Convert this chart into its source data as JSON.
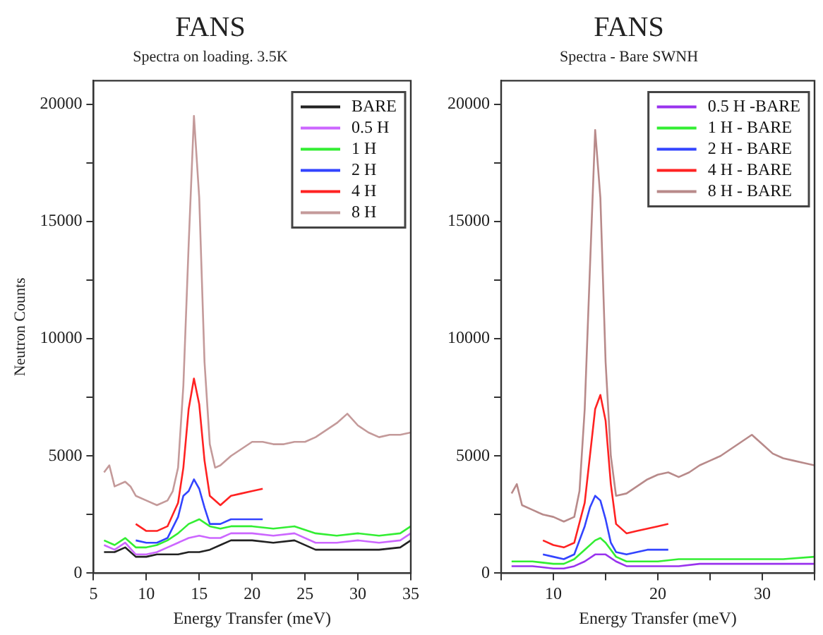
{
  "chart_data": [
    {
      "type": "line",
      "title": "FANS",
      "subtitle": "Spectra on loading. 3.5K",
      "xlabel": "Energy Transfer (meV)",
      "ylabel": "Neutron Counts",
      "xlim": [
        5,
        35
      ],
      "ylim": [
        0,
        21000
      ],
      "xticks": [
        5,
        10,
        15,
        20,
        25,
        30,
        35
      ],
      "yticks": [
        0,
        {
          "value": 2500,
          "label": null
        },
        5000,
        {
          "value": 7500,
          "label": null
        },
        10000,
        {
          "value": 12500,
          "label": null
        },
        15000,
        {
          "value": 17500,
          "label": null
        },
        20000
      ],
      "grid": false,
      "legend": "top right",
      "marker": "none",
      "line_style": "solid",
      "series": [
        {
          "name": "BARE",
          "color": "#222222",
          "x": [
            6,
            7,
            8,
            9,
            10,
            11,
            12,
            13,
            14,
            15,
            16,
            17,
            18,
            20,
            22,
            24,
            26,
            28,
            30,
            32,
            34,
            35
          ],
          "values": [
            900,
            900,
            1100,
            700,
            700,
            800,
            800,
            800,
            900,
            900,
            1000,
            1200,
            1400,
            1400,
            1300,
            1400,
            1000,
            1000,
            1000,
            1000,
            1100,
            1400
          ]
        },
        {
          "name": "0.5 H",
          "color": "#cc66ff",
          "x": [
            6,
            7,
            8,
            9,
            10,
            11,
            12,
            13,
            14,
            15,
            16,
            17,
            18,
            20,
            22,
            24,
            26,
            28,
            30,
            32,
            34,
            35
          ],
          "values": [
            1200,
            1000,
            1300,
            800,
            800,
            900,
            1100,
            1300,
            1500,
            1600,
            1500,
            1500,
            1700,
            1700,
            1600,
            1700,
            1300,
            1300,
            1400,
            1300,
            1400,
            1700
          ]
        },
        {
          "name": "1 H",
          "color": "#33ee33",
          "x": [
            6,
            7,
            8,
            9,
            10,
            11,
            12,
            13,
            14,
            15,
            16,
            17,
            18,
            19,
            20,
            22,
            24,
            26,
            28,
            30,
            32,
            34,
            35
          ],
          "values": [
            1400,
            1200,
            1500,
            1100,
            1100,
            1200,
            1400,
            1700,
            2100,
            2300,
            2000,
            1900,
            2000,
            2000,
            2000,
            1900,
            2000,
            1700,
            1600,
            1700,
            1600,
            1700,
            2000
          ]
        },
        {
          "name": "2 H",
          "color": "#3344ff",
          "x": [
            9,
            10,
            11,
            12,
            13,
            13.5,
            14,
            14.5,
            15,
            15.5,
            16,
            17,
            18,
            19,
            20,
            21
          ],
          "values": [
            1400,
            1300,
            1300,
            1500,
            2400,
            3300,
            3500,
            4000,
            3600,
            2800,
            2100,
            2100,
            2300,
            2300,
            2300,
            2300
          ]
        },
        {
          "name": "4 H",
          "color": "#ff2222",
          "x": [
            9,
            10,
            11,
            12,
            13,
            13.5,
            14,
            14.5,
            15,
            15.5,
            16,
            17,
            18,
            19,
            20,
            21
          ],
          "values": [
            2100,
            1800,
            1800,
            2000,
            3000,
            4500,
            7000,
            8300,
            7200,
            4800,
            3300,
            2900,
            3300,
            3400,
            3500,
            3600
          ]
        },
        {
          "name": "8 H",
          "color": "#c49a9a",
          "x": [
            6,
            6.5,
            7,
            8,
            8.5,
            9,
            10,
            11,
            12,
            12.5,
            13,
            13.5,
            14,
            14.5,
            15,
            15.5,
            16,
            16.5,
            17,
            18,
            19,
            20,
            21,
            22,
            23,
            24,
            25,
            26,
            27,
            28,
            29,
            30,
            31,
            32,
            33,
            34,
            35
          ],
          "values": [
            4300,
            4600,
            3700,
            3900,
            3700,
            3300,
            3100,
            2900,
            3100,
            3500,
            4500,
            8000,
            14000,
            19500,
            16000,
            9000,
            5500,
            4500,
            4600,
            5000,
            5300,
            5600,
            5600,
            5500,
            5500,
            5600,
            5600,
            5800,
            6100,
            6400,
            6800,
            6300,
            6000,
            5800,
            5900,
            5900,
            6000
          ]
        }
      ]
    },
    {
      "type": "line",
      "title": "FANS",
      "subtitle": "Spectra - Bare SWNH",
      "xlabel": "Energy Transfer (meV)",
      "xlim": [
        5,
        35
      ],
      "ylim": [
        0,
        21000
      ],
      "xticks": [
        {
          "value": 5,
          "label": null
        },
        10,
        {
          "value": 15,
          "label": null
        },
        20,
        {
          "value": 25,
          "label": null
        },
        30,
        {
          "value": 35,
          "label": null
        }
      ],
      "yticks": [
        0,
        {
          "value": 2500,
          "label": null
        },
        5000,
        {
          "value": 7500,
          "label": null
        },
        10000,
        {
          "value": 12500,
          "label": null
        },
        15000,
        {
          "value": 17500,
          "label": null
        },
        20000
      ],
      "grid": false,
      "legend": "top right",
      "marker": "none",
      "line_style": "solid",
      "series": [
        {
          "name": "0.5 H -BARE",
          "color": "#9933ee",
          "x": [
            6,
            8,
            10,
            11,
            12,
            13,
            14,
            15,
            16,
            17,
            18,
            20,
            22,
            24,
            26,
            28,
            30,
            32,
            35
          ],
          "values": [
            300,
            300,
            200,
            200,
            300,
            500,
            800,
            800,
            500,
            300,
            300,
            300,
            300,
            400,
            400,
            400,
            400,
            400,
            400
          ]
        },
        {
          "name": "1 H - BARE",
          "color": "#33ee33",
          "x": [
            6,
            8,
            10,
            11,
            12,
            13,
            14,
            14.5,
            15,
            16,
            17,
            18,
            20,
            22,
            24,
            26,
            28,
            30,
            32,
            35
          ],
          "values": [
            500,
            500,
            400,
            400,
            600,
            1000,
            1400,
            1500,
            1300,
            700,
            500,
            500,
            500,
            600,
            600,
            600,
            600,
            600,
            600,
            700
          ]
        },
        {
          "name": "2 H - BARE",
          "color": "#3344ff",
          "x": [
            9,
            10,
            11,
            12,
            13,
            13.5,
            14,
            14.5,
            15,
            15.5,
            16,
            17,
            18,
            19,
            20,
            21
          ],
          "values": [
            800,
            700,
            600,
            800,
            2000,
            2800,
            3300,
            3100,
            2300,
            1300,
            900,
            800,
            900,
            1000,
            1000,
            1000
          ]
        },
        {
          "name": "4 H - BARE",
          "color": "#ff2222",
          "x": [
            9,
            10,
            11,
            12,
            13,
            13.5,
            14,
            14.5,
            15,
            15.5,
            16,
            17,
            18,
            19,
            20,
            21
          ],
          "values": [
            1400,
            1200,
            1100,
            1300,
            3000,
            5000,
            7000,
            7600,
            6500,
            3800,
            2100,
            1700,
            1800,
            1900,
            2000,
            2100
          ]
        },
        {
          "name": "8 H - BARE",
          "color": "#b88a8a",
          "x": [
            6,
            6.5,
            7,
            8,
            9,
            10,
            11,
            12,
            12.5,
            13,
            13.5,
            14,
            14.5,
            15,
            15.5,
            16,
            17,
            18,
            19,
            20,
            21,
            22,
            23,
            24,
            25,
            26,
            27,
            28,
            29,
            30,
            31,
            32,
            33,
            34,
            35
          ],
          "values": [
            3400,
            3800,
            2900,
            2700,
            2500,
            2400,
            2200,
            2400,
            3500,
            7000,
            13000,
            18900,
            16000,
            9000,
            5000,
            3300,
            3400,
            3700,
            4000,
            4200,
            4300,
            4100,
            4300,
            4600,
            4800,
            5000,
            5300,
            5600,
            5900,
            5500,
            5100,
            4900,
            4800,
            4700,
            4600
          ]
        }
      ]
    }
  ]
}
